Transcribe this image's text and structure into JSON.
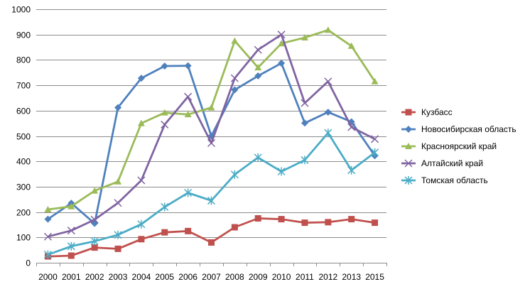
{
  "chart_data": {
    "type": "line",
    "x": [
      "2000",
      "2001",
      "2002",
      "2003",
      "2004",
      "2005",
      "2006",
      "2007",
      "2008",
      "2009",
      "2010",
      "2011",
      "2012",
      "2013",
      "2015"
    ],
    "ylim": [
      0,
      1000
    ],
    "yticks": [
      "0",
      "100",
      "200",
      "300",
      "400",
      "500",
      "600",
      "700",
      "800",
      "900",
      "1000"
    ],
    "grid": true,
    "legend": "right",
    "series": [
      {
        "name": "Кузбасс",
        "color": "#C0504D",
        "marker": "square",
        "values": [
          25,
          28,
          60,
          55,
          93,
          120,
          125,
          80,
          140,
          175,
          172,
          158,
          160,
          172,
          158
        ]
      },
      {
        "name": "Новосибирская область",
        "color": "#4F81BD",
        "marker": "diamond",
        "values": [
          172,
          235,
          155,
          612,
          728,
          776,
          777,
          500,
          682,
          737,
          787,
          551,
          594,
          556,
          422
        ]
      },
      {
        "name": "Красноярский край",
        "color": "#9BBB59",
        "marker": "triangle",
        "values": [
          210,
          222,
          284,
          320,
          550,
          592,
          585,
          612,
          875,
          770,
          865,
          888,
          918,
          855,
          715
        ]
      },
      {
        "name": "Алтайский край",
        "color": "#8064A2",
        "marker": "x",
        "values": [
          103,
          127,
          170,
          236,
          325,
          545,
          655,
          472,
          728,
          840,
          900,
          630,
          715,
          535,
          488
        ]
      },
      {
        "name": "Томская область",
        "color": "#4BACC6",
        "marker": "star",
        "values": [
          32,
          65,
          85,
          110,
          152,
          220,
          276,
          245,
          348,
          415,
          360,
          405,
          512,
          365,
          435
        ]
      }
    ]
  }
}
